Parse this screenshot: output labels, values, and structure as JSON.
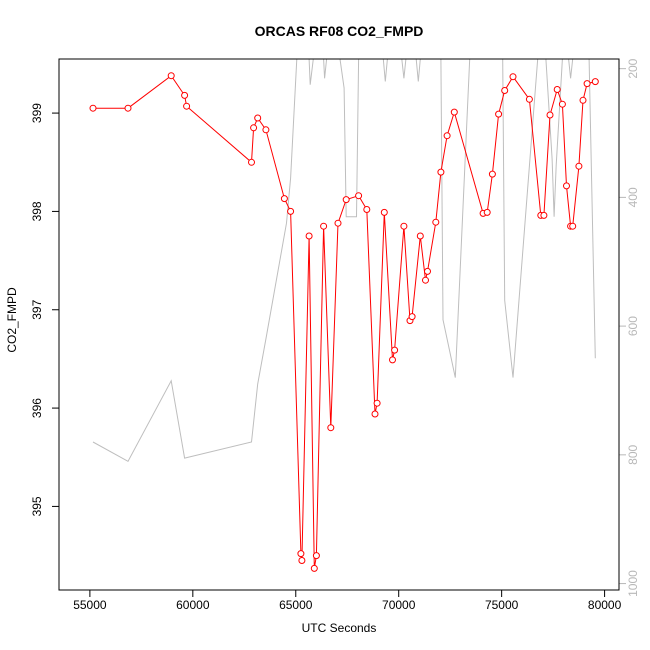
{
  "chart_data": {
    "type": "line",
    "title": "ORCAS RF08 CO2_FMPD",
    "xlabel": "UTC Seconds",
    "ylabel": "CO2_FMPD",
    "xlim": [
      53500,
      80700
    ],
    "ylim": [
      394.15,
      399.55
    ],
    "right_ylim": [
      1010,
      185
    ],
    "x_ticks": [
      55000,
      60000,
      65000,
      70000,
      75000,
      80000
    ],
    "y_ticks": [
      395,
      396,
      397,
      398,
      399
    ],
    "right_ticks": [
      200,
      400,
      600,
      800,
      1000
    ],
    "colors": {
      "primary": "#ff0000",
      "secondary": "#bebebe"
    },
    "series": [
      {
        "axis": "left",
        "style": "line+points",
        "points": [
          [
            55150,
            399.05
          ],
          [
            56850,
            399.05
          ],
          [
            58950,
            399.38
          ],
          [
            59600,
            399.18
          ],
          [
            59700,
            399.07
          ],
          [
            62850,
            398.5
          ],
          [
            62950,
            398.85
          ],
          [
            63150,
            398.95
          ],
          [
            63550,
            398.83
          ],
          [
            64450,
            398.13
          ],
          [
            64750,
            398.0
          ],
          [
            65250,
            394.52
          ],
          [
            65300,
            394.45
          ],
          [
            65650,
            397.75
          ],
          [
            65900,
            394.37
          ],
          [
            66000,
            394.5
          ],
          [
            66350,
            397.85
          ],
          [
            66700,
            395.8
          ],
          [
            67050,
            397.88
          ],
          [
            67450,
            398.12
          ],
          [
            68050,
            398.16
          ],
          [
            68450,
            398.02
          ],
          [
            68850,
            395.94
          ],
          [
            68950,
            396.05
          ],
          [
            69300,
            397.99
          ],
          [
            69700,
            396.49
          ],
          [
            69800,
            396.59
          ],
          [
            70250,
            397.85
          ],
          [
            70550,
            396.89
          ],
          [
            70650,
            396.93
          ],
          [
            71050,
            397.75
          ],
          [
            71300,
            397.3
          ],
          [
            71400,
            397.39
          ],
          [
            71800,
            397.89
          ],
          [
            72050,
            398.4
          ],
          [
            72350,
            398.77
          ],
          [
            72700,
            399.01
          ],
          [
            74100,
            397.98
          ],
          [
            74300,
            397.99
          ],
          [
            74550,
            398.38
          ],
          [
            74850,
            398.99
          ],
          [
            75150,
            399.23
          ],
          [
            75550,
            399.37
          ],
          [
            76350,
            399.14
          ],
          [
            76900,
            397.96
          ],
          [
            77050,
            397.96
          ],
          [
            77350,
            398.98
          ],
          [
            77700,
            399.24
          ],
          [
            77950,
            399.09
          ],
          [
            78150,
            398.26
          ],
          [
            78350,
            397.85
          ],
          [
            78450,
            397.85
          ],
          [
            78750,
            398.46
          ],
          [
            78950,
            399.13
          ],
          [
            79150,
            399.3
          ],
          [
            79550,
            399.32
          ]
        ]
      },
      {
        "axis": "right",
        "style": "line",
        "points": [
          [
            55150,
            780
          ],
          [
            56850,
            810
          ],
          [
            58950,
            685
          ],
          [
            59600,
            805
          ],
          [
            62850,
            780
          ],
          [
            63150,
            690
          ],
          [
            63550,
            620
          ],
          [
            64550,
            440
          ],
          [
            64750,
            370
          ],
          [
            65050,
            185
          ],
          [
            65650,
            185
          ],
          [
            65700,
            225
          ],
          [
            65850,
            185
          ],
          [
            66350,
            185
          ],
          [
            66400,
            215
          ],
          [
            66500,
            185
          ],
          [
            67150,
            185
          ],
          [
            67350,
            230
          ],
          [
            67450,
            430
          ],
          [
            67950,
            430
          ],
          [
            68050,
            185
          ],
          [
            69250,
            185
          ],
          [
            69350,
            220
          ],
          [
            69450,
            185
          ],
          [
            70150,
            185
          ],
          [
            70250,
            215
          ],
          [
            70350,
            185
          ],
          [
            70850,
            185
          ],
          [
            70950,
            220
          ],
          [
            71050,
            185
          ],
          [
            72050,
            185
          ],
          [
            72150,
            590
          ],
          [
            72750,
            680
          ],
          [
            73450,
            185
          ],
          [
            75050,
            185
          ],
          [
            75150,
            560
          ],
          [
            75550,
            680
          ],
          [
            76750,
            185
          ],
          [
            77150,
            185
          ],
          [
            77450,
            340
          ],
          [
            77550,
            430
          ],
          [
            77650,
            350
          ],
          [
            77950,
            185
          ],
          [
            78250,
            185
          ],
          [
            78350,
            215
          ],
          [
            78450,
            185
          ],
          [
            79250,
            185
          ],
          [
            79550,
            650
          ]
        ]
      }
    ]
  }
}
